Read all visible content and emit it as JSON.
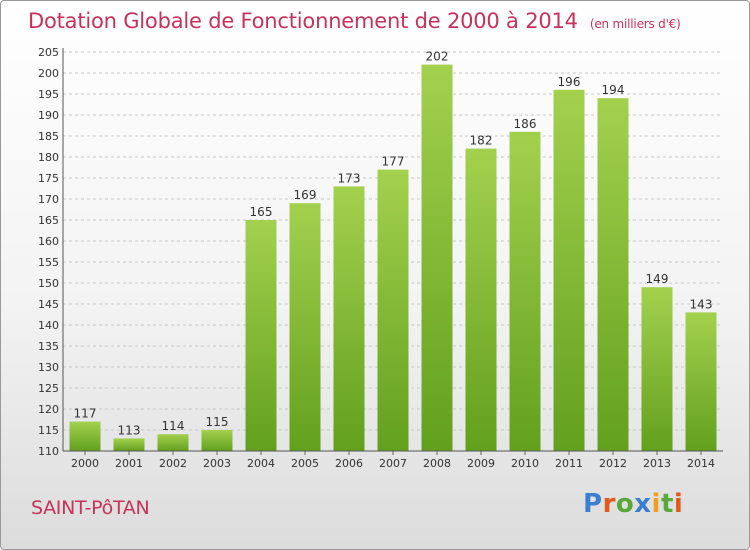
{
  "title": {
    "main": "Dotation Globale de Fonctionnement de 2000 à 2014",
    "unit": "(en milliers d'€)"
  },
  "commune": "SAINT-PôTAN",
  "logo": {
    "text": "Proxiti",
    "letter_colors": [
      "#3a7fd0",
      "#e05a1c",
      "#5aa83a",
      "#3a7fd0",
      "#f0a020",
      "#5aa83a",
      "#e05a1c"
    ]
  },
  "chart_data": {
    "type": "bar",
    "categories": [
      "2000",
      "2001",
      "2002",
      "2003",
      "2004",
      "2005",
      "2006",
      "2007",
      "2008",
      "2009",
      "2010",
      "2011",
      "2012",
      "2013",
      "2014"
    ],
    "values": [
      117,
      113,
      114,
      115,
      165,
      169,
      173,
      177,
      202,
      182,
      186,
      196,
      194,
      149,
      143
    ],
    "ylim": [
      110,
      205
    ],
    "yticks": [
      110,
      115,
      120,
      125,
      130,
      135,
      140,
      145,
      150,
      155,
      160,
      165,
      170,
      175,
      180,
      185,
      190,
      195,
      200,
      205
    ],
    "grid": true,
    "colors": {
      "bar_light": "#a3d14e",
      "bar_dark": "#62a01e",
      "grid": "#c8c8c8",
      "label": "#333333"
    }
  }
}
